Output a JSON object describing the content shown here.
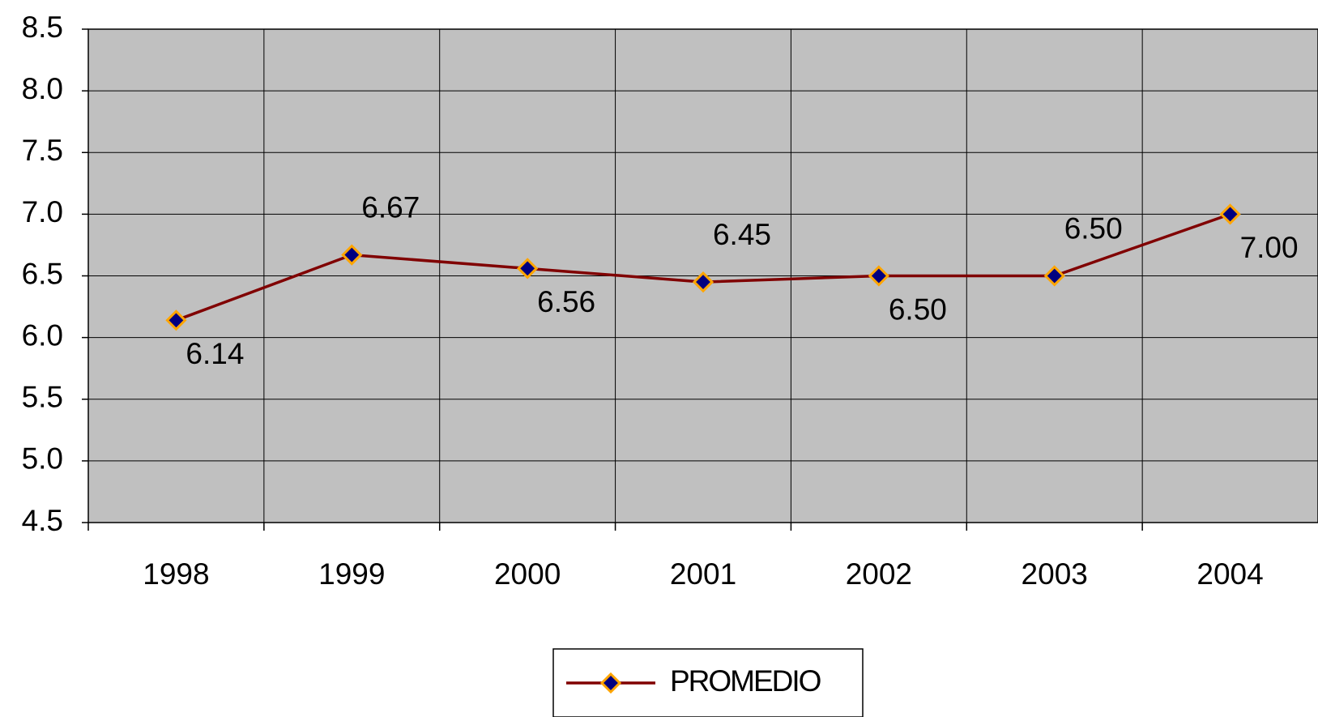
{
  "chart_data": {
    "type": "line",
    "categories": [
      "1998",
      "1999",
      "2000",
      "2001",
      "2002",
      "2003",
      "2004"
    ],
    "series": [
      {
        "name": "PROMEDIO",
        "color": "#800000",
        "marker_color": "#000080",
        "marker_edge_color": "#ffa500",
        "values": [
          6.14,
          6.67,
          6.56,
          6.45,
          6.5,
          6.5,
          7.0
        ],
        "value_labels": [
          "6.14",
          "6.67",
          "6.56",
          "6.45",
          "6.50",
          "6.50",
          "7.00"
        ]
      }
    ],
    "ylim": [
      4.5,
      8.5
    ],
    "yticks": [
      4.5,
      {
        "value": 5,
        "label": "5.0"
      },
      5.5,
      {
        "value": 6,
        "label": "6.0"
      },
      6.5,
      {
        "value": 7,
        "label": "7.0"
      },
      7.5,
      {
        "value": 8,
        "label": "8.0"
      },
      8.5
    ],
    "grid": true,
    "plot_background": "#c0c0c0",
    "legend": "bottom"
  }
}
